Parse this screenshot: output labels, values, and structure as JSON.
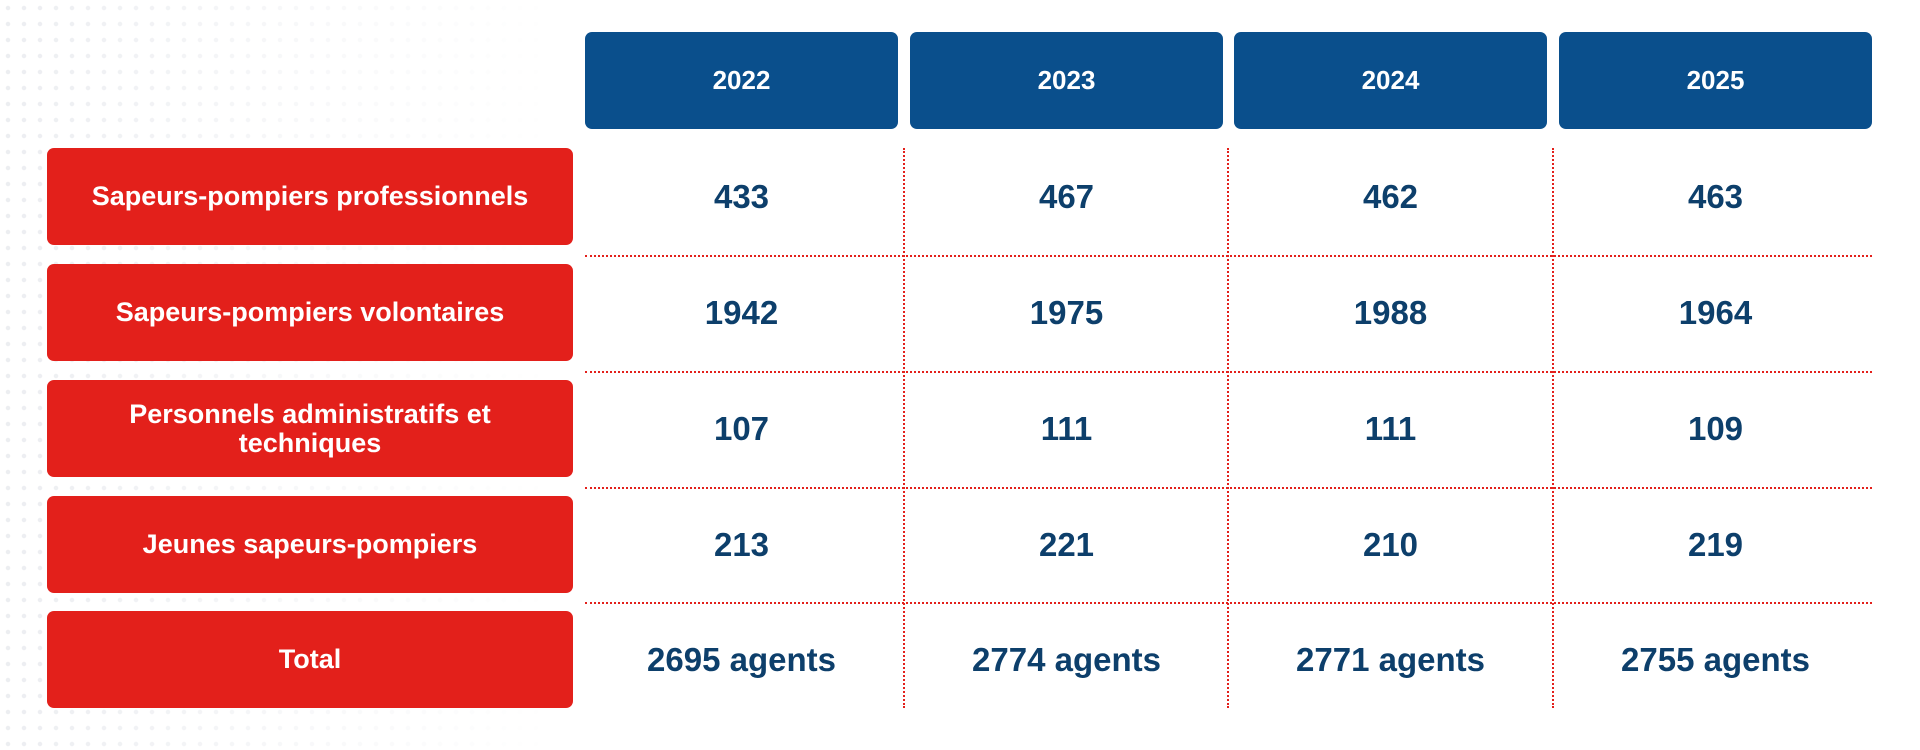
{
  "table": {
    "columns": [
      "2022",
      "2023",
      "2024",
      "2025"
    ],
    "rows": [
      {
        "label": "Sapeurs-pompiers professionnels",
        "values": [
          "433",
          "467",
          "462",
          "463"
        ]
      },
      {
        "label": "Sapeurs-pompiers volontaires",
        "values": [
          "1942",
          "1975",
          "1988",
          "1964"
        ]
      },
      {
        "label": "Personnels administratifs et techniques",
        "values": [
          "107",
          "111",
          "111",
          "109"
        ]
      },
      {
        "label": "Jeunes sapeurs-pompiers",
        "values": [
          "213",
          "221",
          "210",
          "219"
        ]
      },
      {
        "label": "Total",
        "values": [
          "2695 agents",
          "2774 agents",
          "2771 agents",
          "2755 agents"
        ]
      }
    ]
  }
}
